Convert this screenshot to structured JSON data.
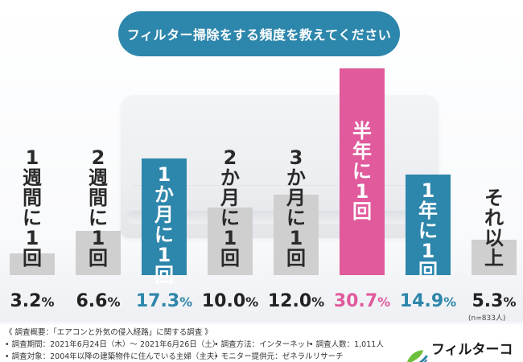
{
  "title": "フィルター掃除をする頻度を教えてください",
  "chart_data": {
    "type": "bar",
    "title": "フィルター掃除をする頻度を教えてください",
    "categories": [
      "1週間に1回",
      "2週間に1回",
      "1か月に1回",
      "2か月に1回",
      "3か月に1回",
      "半年に1回",
      "1年に1回",
      "それ以上"
    ],
    "values": [
      3.2,
      6.6,
      17.3,
      10.0,
      12.0,
      30.7,
      14.9,
      5.3
    ],
    "value_labels": [
      "3.2%",
      "6.6%",
      "17.3%",
      "10.0%",
      "12.0%",
      "30.7%",
      "14.9%",
      "5.3%"
    ],
    "highlight_colors": [
      "#cfcfcf",
      "#cfcfcf",
      "#2d86ab",
      "#cfcfcf",
      "#cfcfcf",
      "#e05a9c",
      "#2d86ab",
      "#cfcfcf"
    ],
    "value_colors": [
      "#222222",
      "#222222",
      "#2d86ab",
      "#222222",
      "#222222",
      "#e05a9c",
      "#2d86ab",
      "#222222"
    ],
    "ylim": [
      0,
      30.7
    ],
    "xlabel": "",
    "ylabel": "",
    "grid": false
  },
  "n_note": "(n=833人)",
  "footer": {
    "line1": "《 調査概要：「エアコンと外気の侵入経路」に関する調査 》",
    "line2a": "• 調査期間：2021年6月24日（木）〜 2021年6月26日（土）",
    "line2b": "• 調査方法：インターネット",
    "line2c": "• 調査人数：1,011人",
    "line3a": "• 調査対象：2004年以降の建築物件に住んでいる主婦（主夫）",
    "line3b": "• モニター提供元：ゼネラルリサーチ"
  },
  "logo": {
    "text": "フィルターコム",
    "icon": "leaf-fan-icon",
    "colors": [
      "#6cbf3a",
      "#2d86ab"
    ]
  }
}
